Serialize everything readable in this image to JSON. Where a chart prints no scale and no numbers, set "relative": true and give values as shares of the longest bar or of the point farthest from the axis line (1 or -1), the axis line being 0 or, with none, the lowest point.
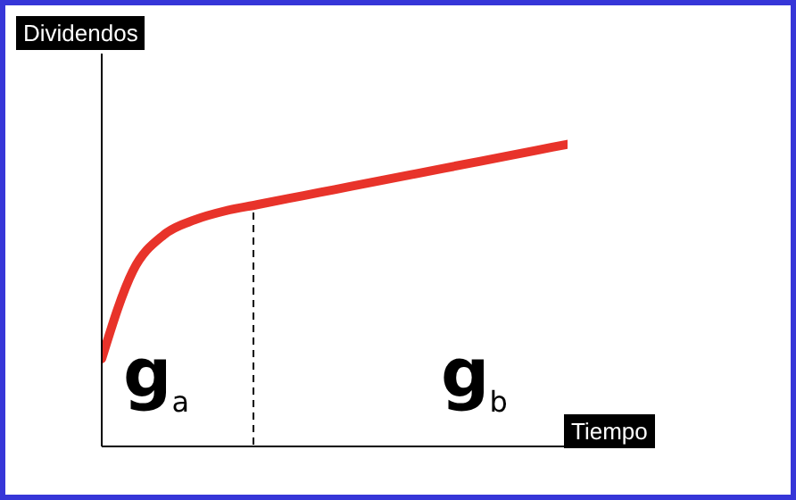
{
  "chart_data": {
    "type": "line",
    "relative": true,
    "xlabel": "Tiempo",
    "ylabel": "Dividendos",
    "categories": [
      null,
      null,
      null,
      null,
      null,
      null,
      null,
      null,
      null,
      null,
      null,
      null,
      null,
      null,
      null,
      null
    ],
    "series": [
      {
        "color": "#e8332a",
        "values": [
          0.29,
          0.58,
          0.7,
          0.75,
          0.78,
          0.8,
          0.82,
          0.84,
          0.86,
          0.88,
          0.9,
          0.92,
          0.94,
          0.96,
          0.98,
          1
        ]
      }
    ],
    "annotations": [
      "g$_{a}$",
      "g$_{b}$"
    ],
    "marker": "none",
    "line_style": "solid",
    "grid": false,
    "legend": false
  }
}
